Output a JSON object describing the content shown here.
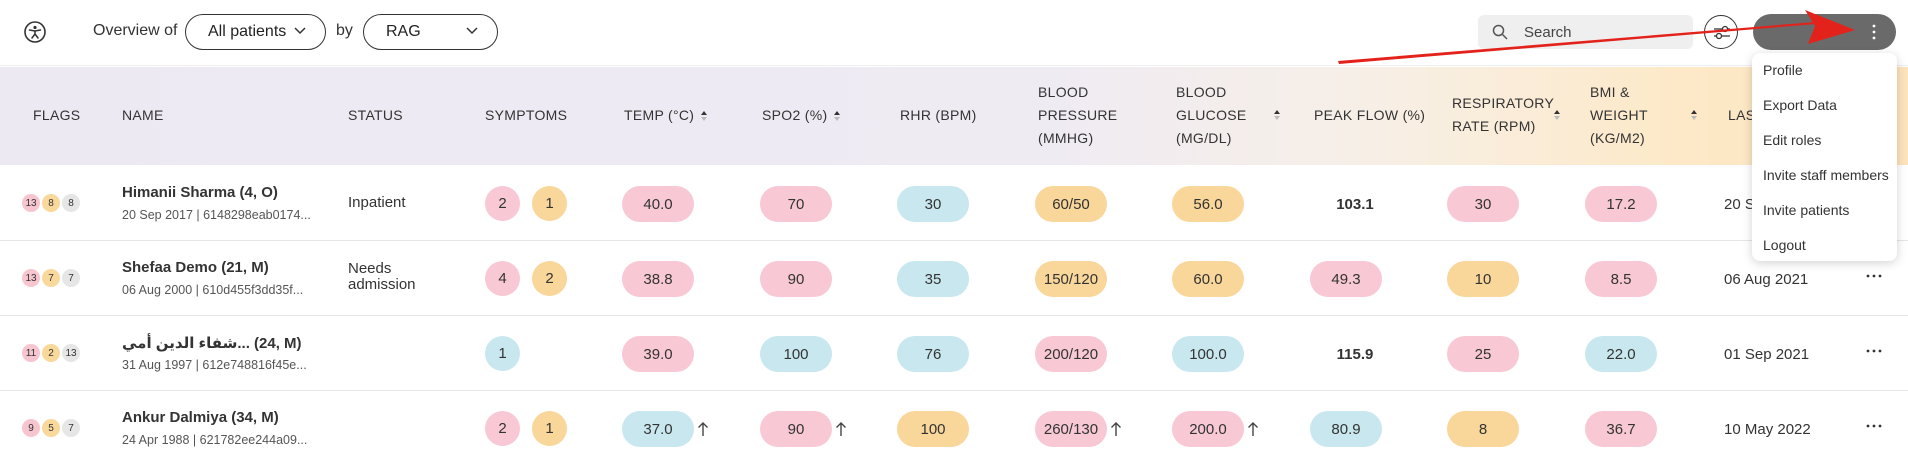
{
  "toolbar": {
    "overview_label": "Overview of",
    "patients_select": "All patients",
    "by_label": "by",
    "group_select": "RAG",
    "search_placeholder": "Search"
  },
  "table": {
    "headers": {
      "flags": "FLAGS",
      "name": "NAME",
      "status": "STATUS",
      "symptoms": "SYMPTOMS",
      "temp": "TEMP (°C)",
      "spo2": "SPO2 (%)",
      "rhr": "RHR (BPM)",
      "bp_1": "BLOOD",
      "bp_2": "PRESSURE",
      "bp_3": "(MMHG)",
      "bg_1": "BLOOD",
      "bg_2": "GLUCOSE",
      "bg_3": "(MG/DL)",
      "peak": "PEAK FLOW (%)",
      "rr_1": "RESPIRATORY",
      "rr_2": "RATE (RPM)",
      "bmi_1": "BMI &",
      "bmi_2": "WEIGHT",
      "bmi_3": "(KG/M2)",
      "last": "LAS"
    },
    "rows": [
      {
        "flags": [
          "13",
          "8",
          "8"
        ],
        "name": "Himanii Sharma (4, O)",
        "sub": "20 Sep 2017 | 6148298eab0174...",
        "status_1": "Inpatient",
        "status_2": "",
        "symptoms": [
          "2",
          "1"
        ],
        "temp": "40.0",
        "spo2": "70",
        "rhr": "30",
        "bp": "60/50",
        "bg": "56.0",
        "peak": "103.1",
        "rr": "30",
        "bmi": "17.2",
        "last": "20 S"
      },
      {
        "flags": [
          "13",
          "7",
          "7"
        ],
        "name": "Shefaa Demo (21, M)",
        "sub": "06 Aug 2000 | 610d455f3dd35f...",
        "status_1": "Needs",
        "status_2": "admission",
        "symptoms": [
          "4",
          "2"
        ],
        "temp": "38.8",
        "spo2": "90",
        "rhr": "35",
        "bp": "150/120",
        "bg": "60.0",
        "peak": "49.3",
        "rr": "10",
        "bmi": "8.5",
        "last": "06 Aug 2021"
      },
      {
        "flags": [
          "11",
          "2",
          "13"
        ],
        "name": "شفاء الدين أمي... (24, M)",
        "sub": "31 Aug 1997 | 612e748816f45e...",
        "status_1": "",
        "status_2": "",
        "symptoms": [
          "1"
        ],
        "temp": "39.0",
        "spo2": "100",
        "rhr": "76",
        "bp": "200/120",
        "bg": "100.0",
        "peak": "115.9",
        "rr": "25",
        "bmi": "22.0",
        "last": "01 Sep 2021"
      },
      {
        "flags": [
          "9",
          "5",
          "7"
        ],
        "name": "Ankur Dalmiya (34, M)",
        "sub": "24 Apr 1988 | 621782ee244a09...",
        "status_1": "",
        "status_2": "",
        "symptoms": [
          "2",
          "1"
        ],
        "temp": "37.0",
        "spo2": "90",
        "rhr": "100",
        "bp": "260/130",
        "bg": "200.0",
        "peak": "80.9",
        "rr": "8",
        "bmi": "36.7",
        "last": "10 May 2022"
      }
    ]
  },
  "menu": {
    "items": [
      "Profile",
      "Export Data",
      "Edit roles",
      "Invite staff members",
      "Invite patients",
      "Logout"
    ]
  },
  "colors": {
    "red_pill": "#f8c8d4",
    "amber_pill": "#f9d699",
    "blue_pill": "#c8e7ee",
    "annotation_arrow": "#e3221c"
  }
}
